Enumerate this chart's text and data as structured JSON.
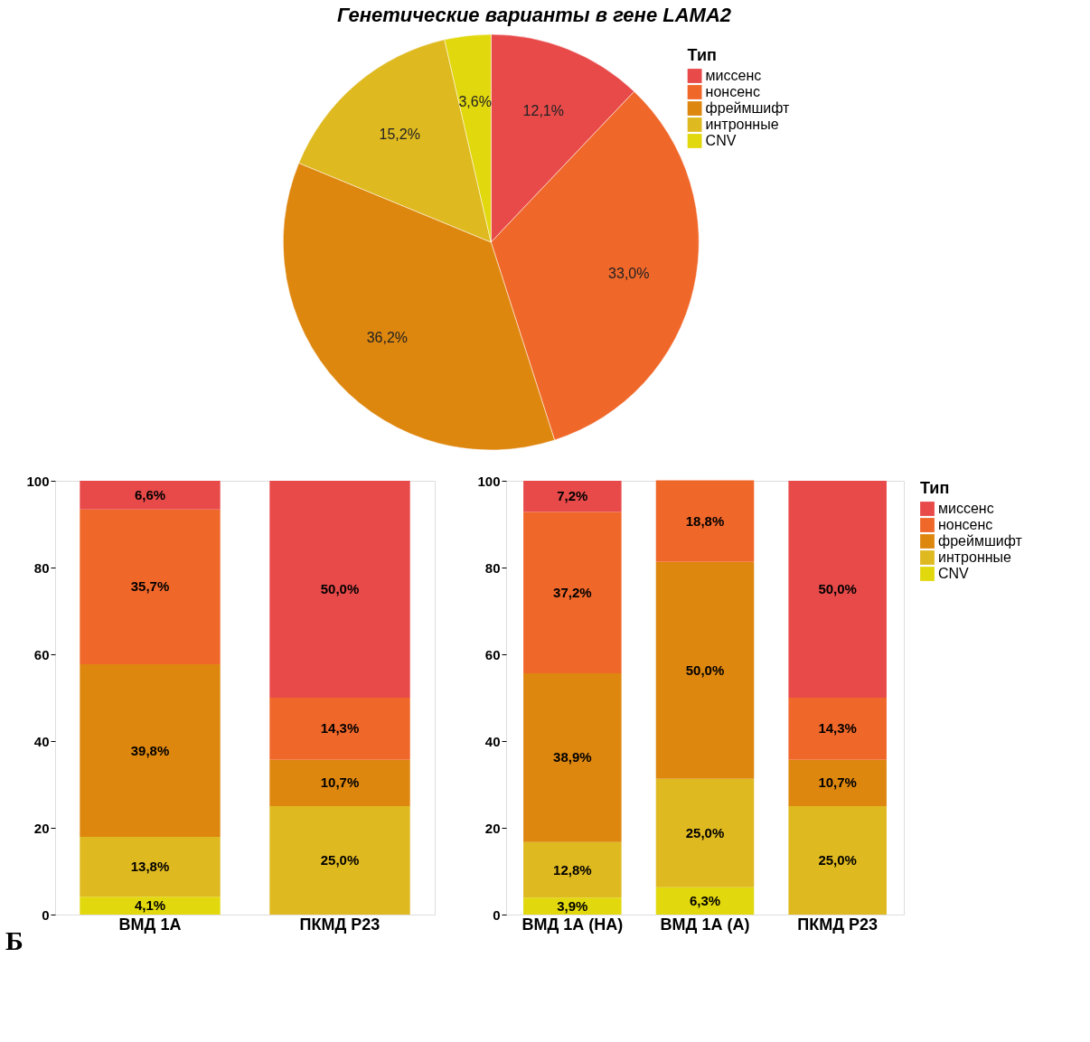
{
  "chart_data": [
    {
      "type": "pie",
      "title": "Генетические варианты в гене LAMA2",
      "legend_title": "Тип",
      "legend": "right",
      "categories": [
        "миссенс",
        "нонсенс",
        "фреймшифт",
        "интронные",
        "CNV"
      ],
      "values": [
        12.1,
        33.0,
        36.2,
        15.2,
        3.6
      ],
      "value_labels": [
        "12,1%",
        "33,0%",
        "36,2%",
        "15,2%",
        "3,6%"
      ],
      "colors": [
        "#e84a4a",
        "#f0672a",
        "#de870f",
        "#dfb920",
        "#e2d80e"
      ]
    },
    {
      "type": "bar",
      "stacked": true,
      "categories": [
        "ВМД 1А",
        "ПКМД Р23"
      ],
      "ylim": [
        0,
        100
      ],
      "yticks": [
        0,
        20,
        40,
        60,
        80,
        100
      ],
      "grid": false,
      "legend": false,
      "annotations": [
        "Б"
      ],
      "series": [
        {
          "color": "#e2d80e",
          "values": [
            4.1,
            null
          ],
          "value_labels": [
            "4,1%",
            null
          ]
        },
        {
          "color": "#dfb920",
          "values": [
            13.8,
            25.0
          ],
          "value_labels": [
            "13,8%",
            "25,0%"
          ]
        },
        {
          "color": "#de870f",
          "values": [
            39.8,
            10.7
          ],
          "value_labels": [
            "39,8%",
            "10,7%"
          ]
        },
        {
          "color": "#f0672a",
          "values": [
            35.7,
            14.3
          ],
          "value_labels": [
            "35,7%",
            "14,3%"
          ]
        },
        {
          "color": "#e84a4a",
          "values": [
            6.6,
            50.0
          ],
          "value_labels": [
            "6,6%",
            "50,0%"
          ]
        }
      ]
    },
    {
      "type": "bar",
      "stacked": true,
      "categories": [
        "ВМД 1А (НА)",
        "ВМД 1А (А)",
        "ПКМД Р23"
      ],
      "ylim": [
        0,
        100
      ],
      "yticks": [
        0,
        20,
        40,
        60,
        80,
        100
      ],
      "grid": false,
      "legend": "top right",
      "legend_title": "Тип",
      "series": [
        {
          "name": "CNV",
          "color": "#e2d80e",
          "values": [
            3.9,
            6.3,
            null
          ],
          "value_labels": [
            "3,9%",
            "6,3%",
            null
          ]
        },
        {
          "name": "интронные",
          "color": "#dfb920",
          "values": [
            12.8,
            25.0,
            25.0
          ],
          "value_labels": [
            "12,8%",
            "25,0%",
            "25,0%"
          ]
        },
        {
          "name": "фреймшифт",
          "color": "#de870f",
          "values": [
            38.9,
            50.0,
            10.7
          ],
          "value_labels": [
            "38,9%",
            "50,0%",
            "10,7%"
          ]
        },
        {
          "name": "нонсенс",
          "color": "#f0672a",
          "values": [
            37.2,
            18.8,
            14.3
          ],
          "value_labels": [
            "37,2%",
            "18,8%",
            "14,3%"
          ]
        },
        {
          "name": "миссенс",
          "color": "#e84a4a",
          "values": [
            7.2,
            null,
            50.0
          ],
          "value_labels": [
            "7,2%",
            null,
            "50,0%"
          ]
        }
      ]
    }
  ]
}
